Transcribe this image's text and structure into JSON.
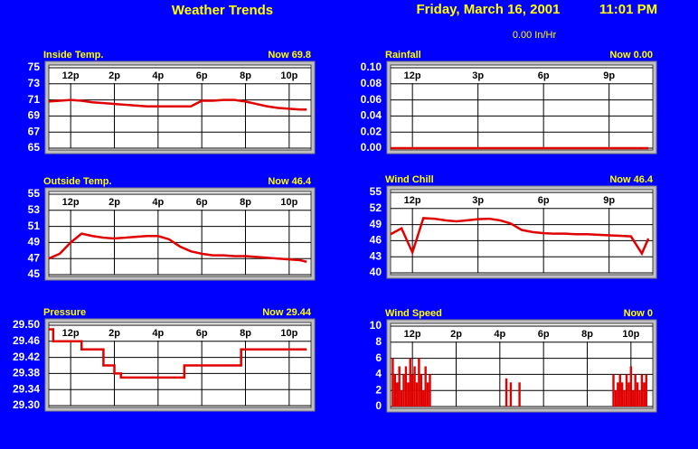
{
  "header": {
    "title": "Weather Trends",
    "date": "Friday, March 16, 2001",
    "time": "11:01 PM",
    "rain_rate": "0.00 In/Hr"
  },
  "chart_data": [
    {
      "type": "line",
      "title": "Inside Temp.",
      "now": "Now 69.8",
      "color": "#e00000",
      "x": [
        11,
        11.5,
        12,
        12.5,
        13,
        13.5,
        14,
        14.5,
        15,
        15.5,
        16,
        16.5,
        17,
        17.5,
        18,
        18.5,
        19,
        19.5,
        20,
        20.5,
        21,
        21.5,
        22,
        22.5,
        22.8
      ],
      "values": [
        70.8,
        70.9,
        71.0,
        70.9,
        70.7,
        70.6,
        70.5,
        70.4,
        70.3,
        70.2,
        70.2,
        70.2,
        70.2,
        70.2,
        70.9,
        70.9,
        71.0,
        71.0,
        70.8,
        70.5,
        70.2,
        70.0,
        69.9,
        69.8,
        69.8
      ],
      "xlim": [
        11,
        23
      ],
      "xticks": [
        {
          "value": 12,
          "label": "12p"
        },
        {
          "value": 14,
          "label": "2p"
        },
        {
          "value": 16,
          "label": "4p"
        },
        {
          "value": 18,
          "label": "6p"
        },
        {
          "value": 20,
          "label": "8p"
        },
        {
          "value": 22,
          "label": "10p"
        }
      ],
      "ylim": [
        65,
        75
      ],
      "yticks": [
        65,
        67,
        69,
        71,
        73,
        75
      ],
      "grid": true
    },
    {
      "type": "line",
      "title": "Rainfall",
      "now": "Now 0.00",
      "color": "#e00000",
      "x": [
        11,
        11.5,
        12,
        12.5,
        13,
        13.5,
        14,
        14.5,
        15,
        15.5,
        16,
        16.5,
        17,
        17.5,
        18,
        18.5,
        19,
        19.5,
        20,
        20.5,
        21,
        21.5,
        22,
        22.5,
        22.8
      ],
      "values": [
        0,
        0,
        0,
        0,
        0,
        0,
        0,
        0,
        0,
        0,
        0,
        0,
        0,
        0,
        0,
        0,
        0,
        0,
        0,
        0,
        0,
        0,
        0,
        0,
        0
      ],
      "xlim": [
        11,
        23
      ],
      "xticks": [
        {
          "value": 12,
          "label": "12p"
        },
        {
          "value": 15,
          "label": "3p"
        },
        {
          "value": 18,
          "label": "6p"
        },
        {
          "value": 21,
          "label": "9p"
        }
      ],
      "ylim": [
        0,
        0.1
      ],
      "yticks": [
        {
          "value": 0,
          "label": "0.00"
        },
        0.02,
        0.04,
        0.06,
        0.08,
        {
          "value": 0.1,
          "label": "0.10"
        }
      ],
      "grid": true
    },
    {
      "type": "line",
      "title": "Outside Temp.",
      "now": "Now 46.4",
      "color": "#e00000",
      "x": [
        11,
        11.5,
        12,
        12.5,
        13,
        13.5,
        14,
        14.5,
        15,
        15.5,
        16,
        16.5,
        17,
        17.5,
        18,
        18.5,
        19,
        19.5,
        20,
        20.5,
        21,
        21.5,
        22,
        22.5,
        22.8
      ],
      "values": [
        47.0,
        47.6,
        49.0,
        50.1,
        49.8,
        49.6,
        49.5,
        49.6,
        49.7,
        49.8,
        49.8,
        49.4,
        48.5,
        47.9,
        47.6,
        47.4,
        47.4,
        47.3,
        47.3,
        47.2,
        47.1,
        47.0,
        46.9,
        46.8,
        46.6
      ],
      "xlim": [
        11,
        23
      ],
      "xticks": [
        {
          "value": 12,
          "label": "12p"
        },
        {
          "value": 14,
          "label": "2p"
        },
        {
          "value": 16,
          "label": "4p"
        },
        {
          "value": 18,
          "label": "6p"
        },
        {
          "value": 20,
          "label": "8p"
        },
        {
          "value": 22,
          "label": "10p"
        }
      ],
      "ylim": [
        45,
        55
      ],
      "yticks": [
        45,
        47,
        49,
        51,
        53,
        55
      ],
      "grid": true
    },
    {
      "type": "line",
      "title": "Wind Chill",
      "now": "Now 46.4",
      "color": "#e00000",
      "x": [
        11,
        11.5,
        12,
        12.5,
        13,
        13.5,
        14,
        14.5,
        15,
        15.5,
        16,
        16.5,
        17,
        17.5,
        18,
        18.5,
        19,
        19.5,
        20,
        20.5,
        21,
        21.5,
        22,
        22.5,
        22.8
      ],
      "values": [
        47.2,
        48.3,
        43.8,
        50.2,
        50.1,
        49.8,
        49.6,
        49.8,
        50.0,
        50.1,
        49.8,
        49.2,
        48.0,
        47.6,
        47.4,
        47.3,
        47.3,
        47.2,
        47.2,
        47.1,
        47.0,
        46.9,
        46.8,
        43.6,
        46.4
      ],
      "xlim": [
        11,
        23
      ],
      "xticks": [
        {
          "value": 12,
          "label": "12p"
        },
        {
          "value": 15,
          "label": "3p"
        },
        {
          "value": 18,
          "label": "6p"
        },
        {
          "value": 21,
          "label": "9p"
        }
      ],
      "ylim": [
        40,
        55
      ],
      "yticks": [
        40,
        43,
        46,
        49,
        52,
        55
      ],
      "grid": true
    },
    {
      "type": "line",
      "title": "Pressure",
      "now": "Now 29.44",
      "color": "#e00000",
      "x": [
        11,
        11.2,
        11.2,
        12.5,
        12.5,
        13.5,
        13.5,
        14.0,
        14.0,
        14.3,
        14.3,
        17.2,
        17.2,
        19.8,
        19.8,
        22.8
      ],
      "values": [
        29.49,
        29.49,
        29.46,
        29.46,
        29.44,
        29.44,
        29.4,
        29.4,
        29.38,
        29.38,
        29.37,
        29.37,
        29.4,
        29.4,
        29.44,
        29.44
      ],
      "xlim": [
        11,
        23
      ],
      "xticks": [
        {
          "value": 12,
          "label": "12p"
        },
        {
          "value": 14,
          "label": "2p"
        },
        {
          "value": 16,
          "label": "4p"
        },
        {
          "value": 18,
          "label": "6p"
        },
        {
          "value": 20,
          "label": "8p"
        },
        {
          "value": 22,
          "label": "10p"
        }
      ],
      "ylim": [
        29.3,
        29.5
      ],
      "yticks": [
        {
          "value": 29.3,
          "label": "29.30"
        },
        29.34,
        29.38,
        29.42,
        29.46,
        {
          "value": 29.5,
          "label": "29.50"
        }
      ],
      "grid": true
    },
    {
      "type": "bar",
      "title": "Wind Speed",
      "now": "Now 0",
      "color": "#e00000",
      "x": [
        11.1,
        11.2,
        11.3,
        11.4,
        11.5,
        11.6,
        11.7,
        11.8,
        11.9,
        12.0,
        12.1,
        12.2,
        12.3,
        12.4,
        12.5,
        12.6,
        12.7,
        12.8,
        16.3,
        16.5,
        16.9,
        21.2,
        21.3,
        21.4,
        21.5,
        21.6,
        21.7,
        21.8,
        21.9,
        22.0,
        22.1,
        22.2,
        22.3,
        22.4,
        22.5,
        22.6,
        22.7
      ],
      "values": [
        6,
        4,
        3,
        5,
        2,
        4,
        5,
        3,
        6,
        4,
        5,
        3,
        6,
        4,
        2,
        5,
        3,
        4,
        3.5,
        3,
        3,
        4,
        2,
        3,
        4,
        3,
        2,
        4,
        3,
        5,
        2,
        4,
        3,
        2,
        4,
        3,
        4
      ],
      "xlim": [
        11,
        23
      ],
      "xticks": [
        {
          "value": 12,
          "label": "12p"
        },
        {
          "value": 14,
          "label": "2p"
        },
        {
          "value": 16,
          "label": "4p"
        },
        {
          "value": 18,
          "label": "6p"
        },
        {
          "value": 20,
          "label": "8p"
        },
        {
          "value": 22,
          "label": "10p"
        }
      ],
      "ylim": [
        0,
        10
      ],
      "yticks": [
        0,
        2,
        4,
        6,
        8,
        10
      ],
      "grid": true
    }
  ]
}
